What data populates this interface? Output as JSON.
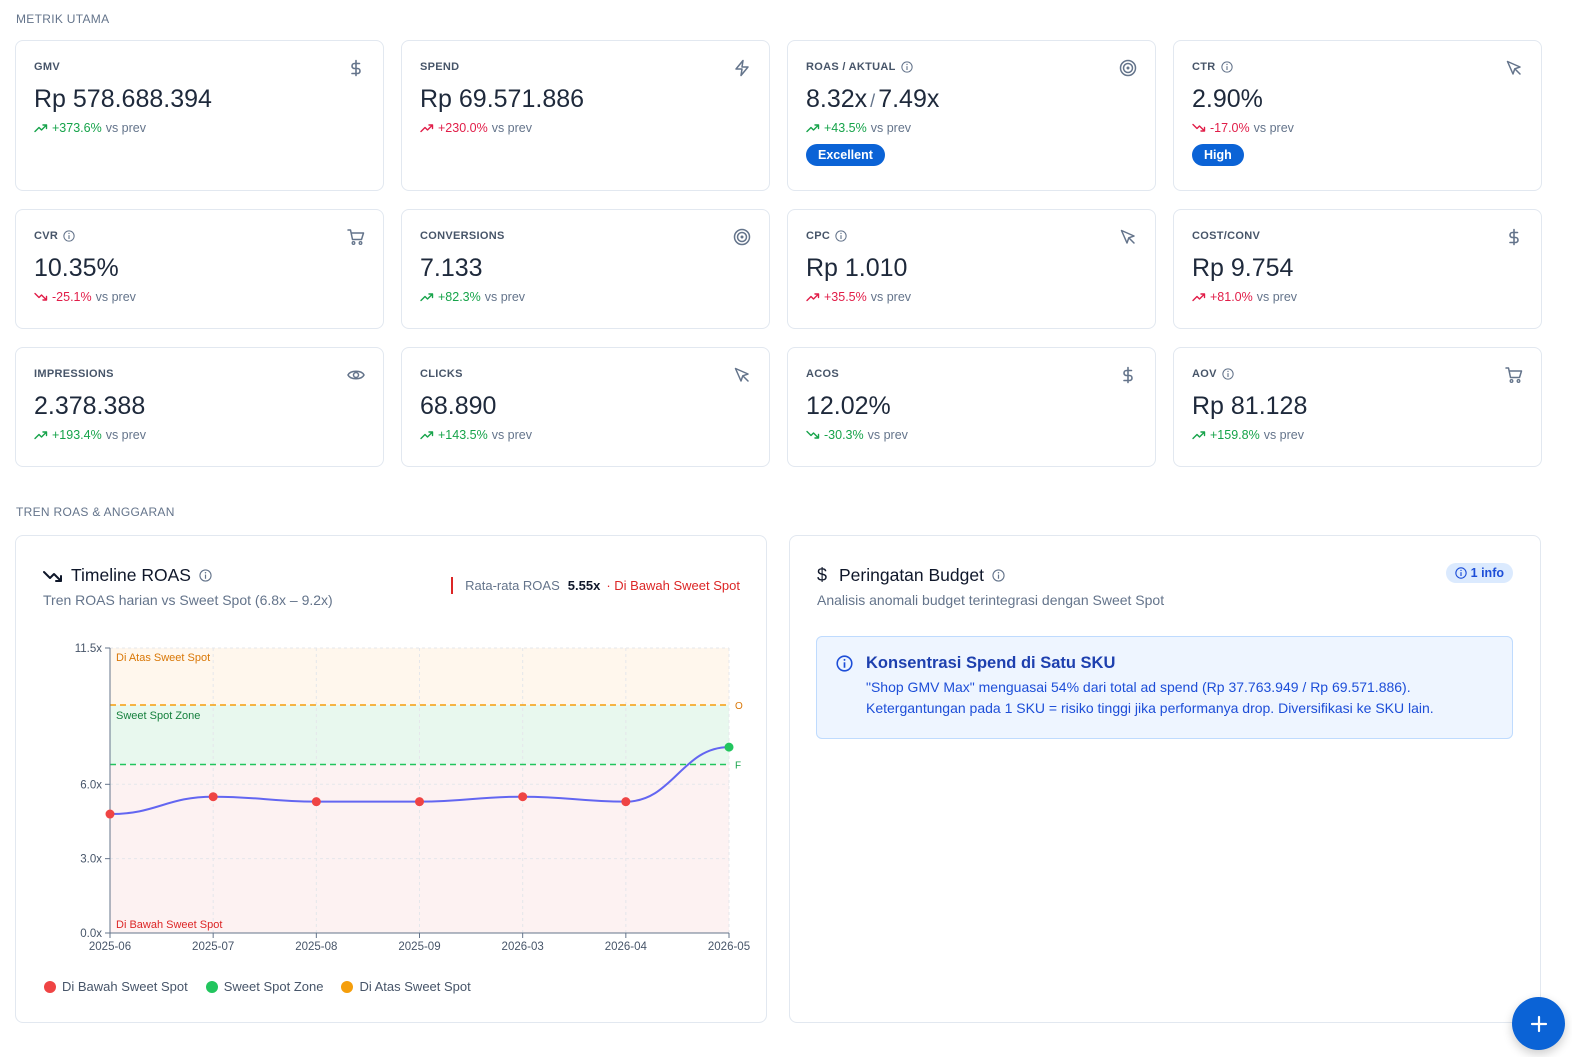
{
  "sections": {
    "metrics_label": "METRIK UTAMA",
    "trend_label": "TREN ROAS & ANGGARAN"
  },
  "metrics": [
    {
      "title": "GMV",
      "info": false,
      "icon": "dollar-icon",
      "value": "Rp 578.688.394",
      "delta": "+373.6%",
      "dir": "up",
      "suffix": "vs prev"
    },
    {
      "title": "SPEND",
      "info": false,
      "icon": "bolt-icon",
      "value": "Rp 69.571.886",
      "delta": "+230.0%",
      "dir": "up-bad",
      "suffix": "vs prev"
    },
    {
      "title": "ROAS / AKTUAL",
      "info": true,
      "icon": "target-icon",
      "value": "8.32x",
      "value2": "7.49x",
      "sep": "/",
      "delta": "+43.5%",
      "dir": "up",
      "suffix": "vs prev",
      "badge": "Excellent"
    },
    {
      "title": "CTR",
      "info": true,
      "icon": "cursor-icon",
      "value": "2.90%",
      "delta": "-17.0%",
      "dir": "down",
      "suffix": "vs prev",
      "badge": "High"
    },
    {
      "title": "CVR",
      "info": true,
      "icon": "cart-icon",
      "value": "10.35%",
      "delta": "-25.1%",
      "dir": "down",
      "suffix": "vs prev"
    },
    {
      "title": "CONVERSIONS",
      "info": false,
      "icon": "target-icon",
      "value": "7.133",
      "delta": "+82.3%",
      "dir": "up",
      "suffix": "vs prev"
    },
    {
      "title": "CPC",
      "info": true,
      "icon": "cursor-icon",
      "value": "Rp 1.010",
      "delta": "+35.5%",
      "dir": "up-bad",
      "suffix": "vs prev"
    },
    {
      "title": "COST/CONV",
      "info": false,
      "icon": "dollar-icon",
      "value": "Rp 9.754",
      "delta": "+81.0%",
      "dir": "up-bad",
      "suffix": "vs prev"
    },
    {
      "title": "IMPRESSIONS",
      "info": false,
      "icon": "eye-icon",
      "value": "2.378.388",
      "delta": "+193.4%",
      "dir": "up",
      "suffix": "vs prev"
    },
    {
      "title": "CLICKS",
      "info": false,
      "icon": "cursor-icon",
      "value": "68.890",
      "delta": "+143.5%",
      "dir": "up",
      "suffix": "vs prev"
    },
    {
      "title": "ACOS",
      "info": false,
      "icon": "dollar-icon",
      "value": "12.02%",
      "delta": "-30.3%",
      "dir": "down-good",
      "suffix": "vs prev"
    },
    {
      "title": "AOV",
      "info": true,
      "icon": "cart-icon",
      "value": "Rp 81.128",
      "delta": "+159.8%",
      "dir": "up",
      "suffix": "vs prev"
    }
  ],
  "roas_panel": {
    "title": "Timeline ROAS",
    "subtitle": "Tren ROAS harian vs Sweet Spot (6.8x – 9.2x)",
    "avg_label": "Rata-rata ROAS",
    "avg_value": "5.55x",
    "avg_status": "· Di Bawah Sweet Spot",
    "legend": [
      {
        "label": "Di Bawah Sweet Spot",
        "color": "#ef4444"
      },
      {
        "label": "Sweet Spot Zone",
        "color": "#22c55e"
      },
      {
        "label": "Di Atas Sweet Spot",
        "color": "#f59e0b"
      }
    ]
  },
  "chart_data": {
    "type": "line",
    "x": [
      "2025-06",
      "2025-07",
      "2025-08",
      "2025-09",
      "2026-03",
      "2026-04",
      "2026-05"
    ],
    "values": [
      4.8,
      5.5,
      5.3,
      5.3,
      5.5,
      5.3,
      7.5
    ],
    "point_colors": [
      "#ef4444",
      "#ef4444",
      "#ef4444",
      "#ef4444",
      "#ef4444",
      "#ef4444",
      "#22c55e"
    ],
    "ylim": [
      0,
      11.5
    ],
    "yticks": [
      "0.0x",
      "3.0x",
      "6.0x",
      "11.5x"
    ],
    "ytick_values": [
      0,
      3,
      6,
      11.5
    ],
    "sweet_low": 6.8,
    "sweet_high": 9.2,
    "line_color": "#6366f1",
    "zones": {
      "above": "Di Atas Sweet Spot",
      "sweet": "Sweet Spot Zone",
      "below": "Di Bawah Sweet Spot"
    },
    "ref_labels": {
      "high": "O",
      "low": "F"
    }
  },
  "budget_panel": {
    "title": "Peringatan Budget",
    "subtitle": "Analisis anomali budget terintegrasi dengan Sweet Spot",
    "badge": "1 info",
    "alert_title": "Konsentrasi Spend di Satu SKU",
    "alert_line1": "\"Shop GMV Max\" menguasai 54% dari total ad spend (Rp 37.763.949 / Rp 69.571.886).",
    "alert_line2": "Ketergantungan pada 1 SKU = risiko tinggi jika performanya drop. Diversifikasi ke SKU lain."
  },
  "fab": {
    "icon": "plus-icon"
  }
}
